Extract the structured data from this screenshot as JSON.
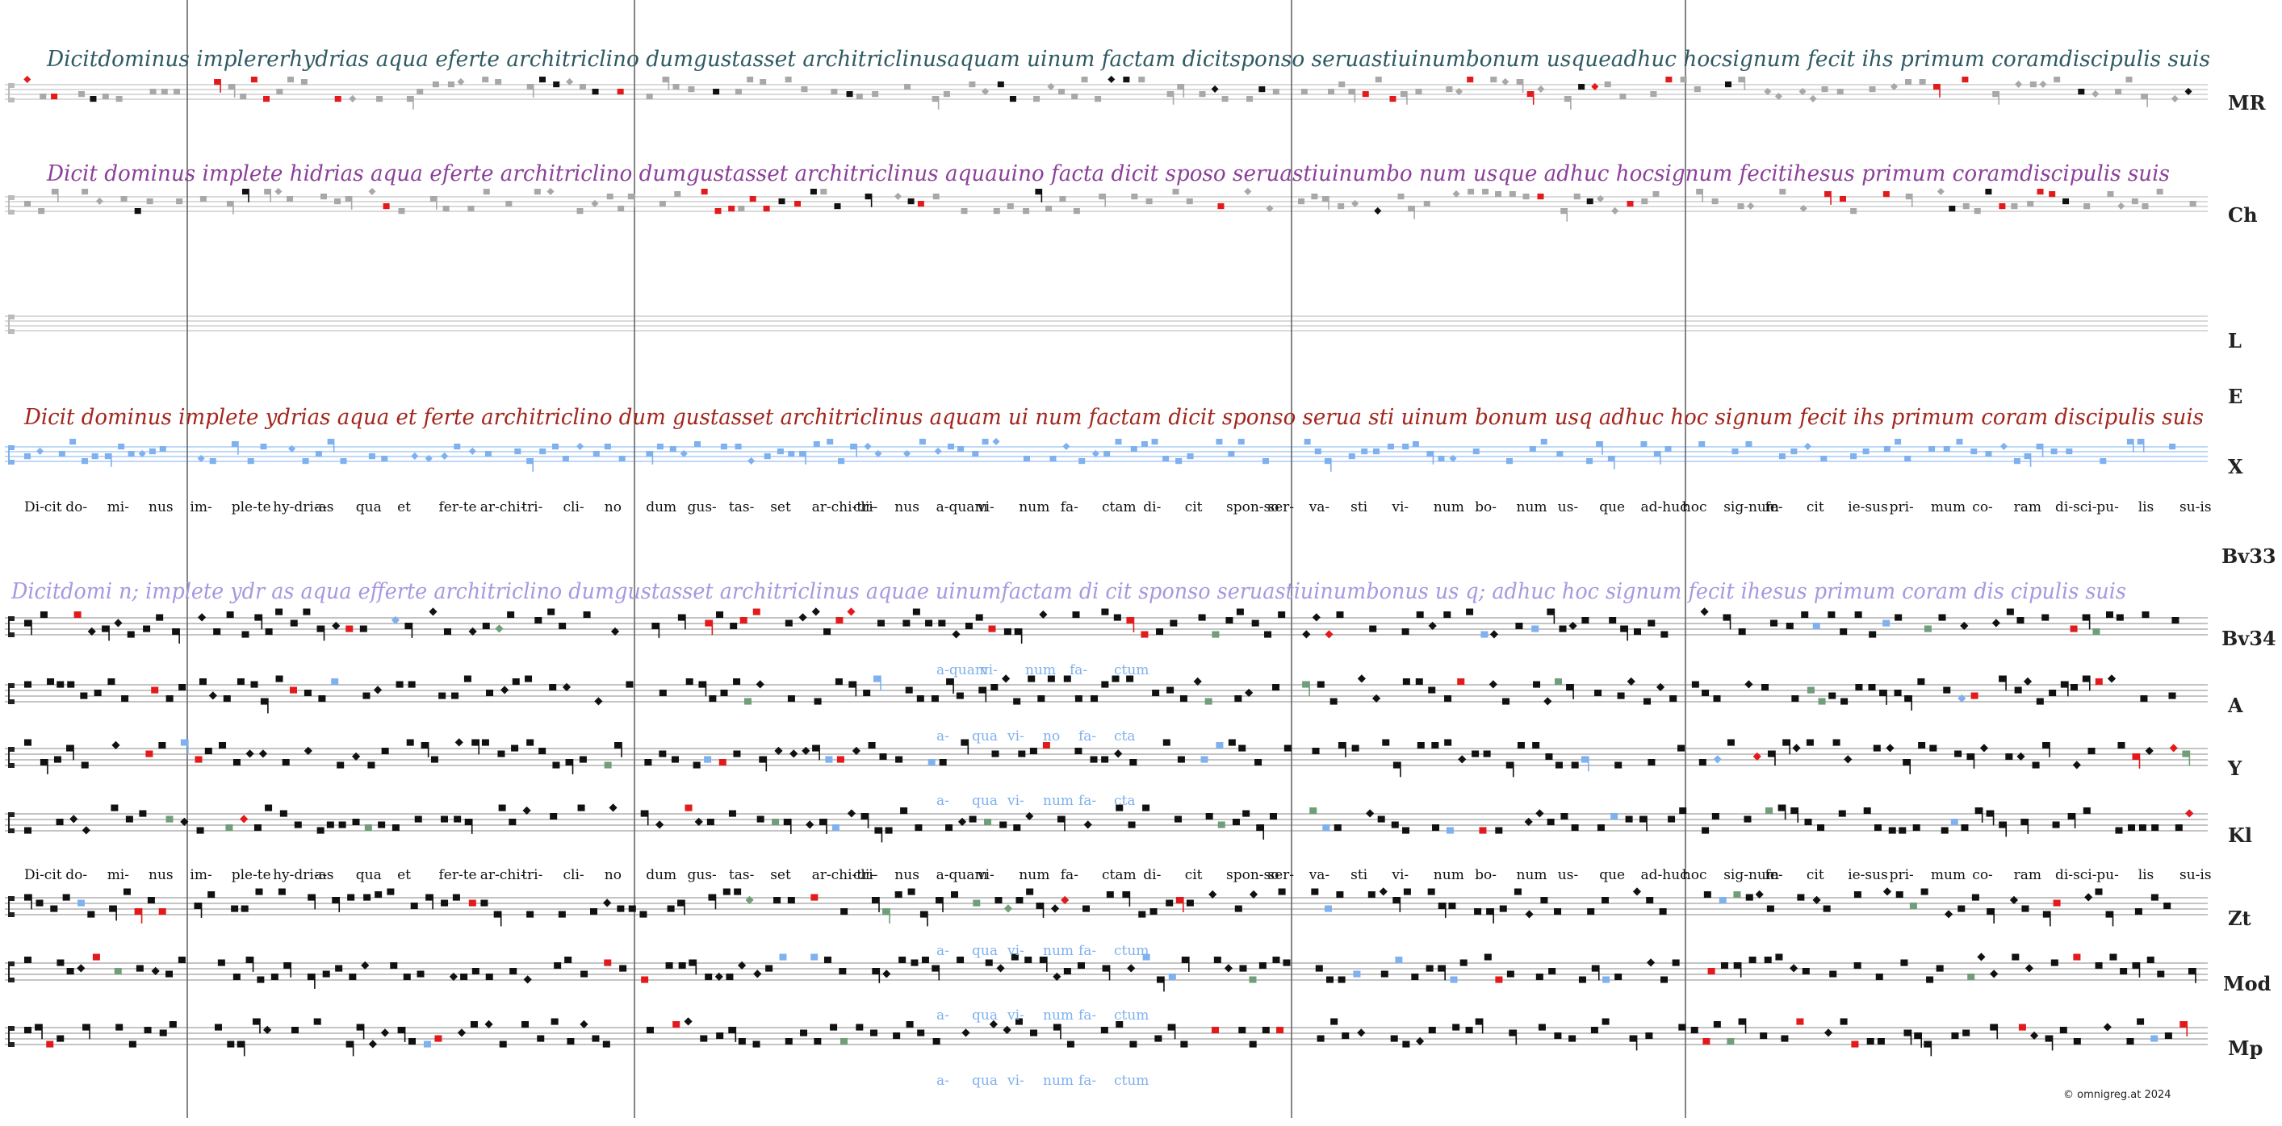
{
  "colors": {
    "staff": "#8a8a8a",
    "note": "#111111",
    "variant": "#e31a1c",
    "grey": "#a8a8a8",
    "blue": "#7fb1ee",
    "green": "#6f9e78",
    "mr_script": "#2e5a63",
    "ch_script": "#8b3f9a",
    "e_script": "#a3251c",
    "bv33_script": "#a897e0",
    "variant_text": "#7fb1ee",
    "divider": "#666666"
  },
  "sigla": [
    "MR",
    "Ch",
    "L",
    "E",
    "X",
    "Bv33",
    "Bv34",
    "A",
    "Y",
    "Kl",
    "Zt",
    "Mod",
    "Mp"
  ],
  "manuscript_text": {
    "mr": "Dicitdominus implererhydrias aqua eferte architriclino dumgustasset architriclinusaquam uinum factam dicitsponso seruastiuinumbonum usqueadhuc hocsignum fecit ihs primum coramdiscipulis suis",
    "ch": "Dicit dominus implete hidrias aqua eferte architriclino dumgustasset architriclinus aquauino facta dicit sposo seruastiuinumbo num usque adhuc hocsignum fecitihesus primum coramdiscipulis suis",
    "e": "Dicit dominus implete ydrias aqua et ferte architriclino dum gustasset architriclinus aquam ui num factam dicit sponso serua sti uinum bonum usq adhuc hoc signum fecit ihs primum coram discipulis suis",
    "bv33": "Dicitdomi n; implete ydr as aqua efferte architriclino dumgustasset architriclinus aquae uinumfactam di cit sponso seruastiuinumbonus us q; adhuc hoc signum fecit ihesus primum coram dis cipulis suis"
  },
  "syllables": [
    "Di-cit",
    "do-",
    "mi-",
    "nus",
    "im-",
    "ple-te",
    "hy-dri-as",
    "a-",
    "qua",
    "et",
    "fer-te",
    "ar-chi-",
    "tri-",
    "cli-",
    "no",
    "dum",
    "gus-",
    "tas-",
    "set",
    "ar-chi-tri-",
    "cli-",
    "nus",
    "a-quam",
    "vi-",
    "num",
    "fa-",
    "ctam",
    "di-",
    "cit",
    "spon-so",
    "ser-",
    "va-",
    "sti",
    "vi-",
    "num",
    "bo-",
    "num",
    "us-",
    "que",
    "ad-huc",
    "hoc",
    "sig-num",
    "fe-",
    "cit",
    "ie-sus",
    "pri-",
    "mum",
    "co-",
    "ram",
    "di-sci-",
    "pu-",
    "lis",
    "su-is"
  ],
  "syllables_x": [
    "Di-cit",
    "do-",
    "mi-",
    "nus",
    "im-",
    "ple-te",
    "hy-dri-as",
    "a-",
    "qua",
    "et",
    "fer-te",
    "ar-chi-",
    "tri-",
    "cli-",
    "no",
    "dum",
    "gus-",
    "tas-",
    "set",
    "ar-chi-tri-",
    "cli-",
    "nus",
    "a-quam",
    "vi-",
    "num",
    "fa-",
    "ctam",
    "di-",
    "cit",
    "spon-so",
    "ser-",
    "va-",
    "sti",
    "vi-",
    "num",
    "bo-",
    "num",
    "us-",
    "que",
    "ad-huc",
    "hoc",
    "sig-num",
    "fe-",
    "cit",
    "ie-sus",
    "pri-",
    "mum",
    "co-",
    "ram",
    "di-sci-",
    "pu-",
    "lis",
    "su-is"
  ],
  "variant_lyrics": {
    "bv34": [
      "a-quam",
      "vi-",
      "num",
      "fa-",
      "ctum"
    ],
    "a": [
      "a-",
      "qua",
      "vi-",
      "no",
      "fa-",
      "cta"
    ],
    "y": [
      "a-",
      "qua",
      "vi-",
      "num",
      "fa-",
      "cta"
    ],
    "zt": [
      "a-",
      "qua",
      "vi-",
      "num",
      "fa-",
      "ctum"
    ],
    "mod": [
      "a-",
      "qua",
      "vi-",
      "num",
      "fa-",
      "ctum"
    ],
    "mp": [
      "a-",
      "qua",
      "vi-",
      "num",
      "fa-",
      "ctum"
    ]
  },
  "copyright": "© omnigreg.at  2024"
}
